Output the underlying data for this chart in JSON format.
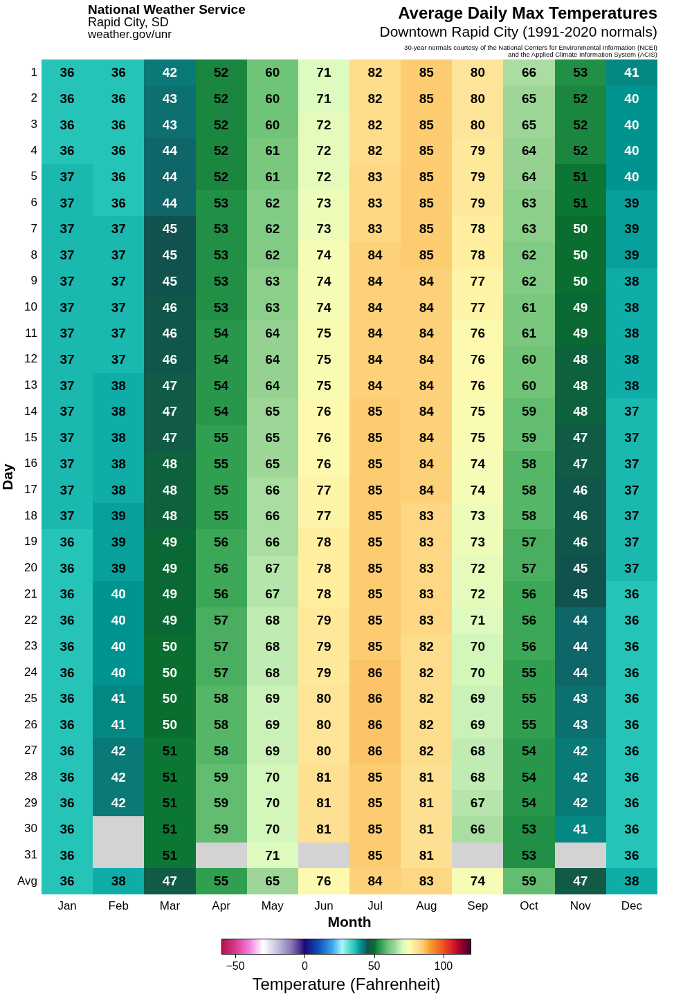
{
  "chart_data": {
    "type": "heatmap",
    "title": "Average Daily Max Temperatures",
    "subtitle": "Downtown Rapid City (1991-2020 normals)",
    "annotations": [
      "National Weather Service",
      "Rapid City, SD",
      "weather.gov/unr",
      "30-year normals courtesy of the National Centers for Environmental Information (NCEI) and the Applied Climate Information System (ACIS)"
    ],
    "xlabel": "Month",
    "ylabel": "Day",
    "clabel": "Temperature (Fahrenheit)",
    "categories": [
      "Jan",
      "Feb",
      "Mar",
      "Apr",
      "May",
      "Jun",
      "Jul",
      "Aug",
      "Sep",
      "Oct",
      "Nov",
      "Dec"
    ],
    "y_categories": [
      "1",
      "2",
      "3",
      "4",
      "5",
      "6",
      "7",
      "8",
      "9",
      "10",
      "11",
      "12",
      "13",
      "14",
      "15",
      "16",
      "17",
      "18",
      "19",
      "20",
      "21",
      "22",
      "23",
      "24",
      "25",
      "26",
      "27",
      "28",
      "29",
      "30",
      "31",
      "Avg"
    ],
    "cells": [
      [
        36,
        36,
        42,
        52,
        60,
        71,
        82,
        85,
        80,
        66,
        53,
        41
      ],
      [
        36,
        36,
        43,
        52,
        60,
        71,
        82,
        85,
        80,
        65,
        52,
        40
      ],
      [
        36,
        36,
        43,
        52,
        60,
        72,
        82,
        85,
        80,
        65,
        52,
        40
      ],
      [
        36,
        36,
        44,
        52,
        61,
        72,
        82,
        85,
        79,
        64,
        52,
        40
      ],
      [
        37,
        36,
        44,
        52,
        61,
        72,
        83,
        85,
        79,
        64,
        51,
        40
      ],
      [
        37,
        36,
        44,
        53,
        62,
        73,
        83,
        85,
        79,
        63,
        51,
        39
      ],
      [
        37,
        37,
        45,
        53,
        62,
        73,
        83,
        85,
        78,
        63,
        50,
        39
      ],
      [
        37,
        37,
        45,
        53,
        62,
        74,
        84,
        85,
        78,
        62,
        50,
        39
      ],
      [
        37,
        37,
        45,
        53,
        63,
        74,
        84,
        84,
        77,
        62,
        50,
        38
      ],
      [
        37,
        37,
        46,
        53,
        63,
        74,
        84,
        84,
        77,
        61,
        49,
        38
      ],
      [
        37,
        37,
        46,
        54,
        64,
        75,
        84,
        84,
        76,
        61,
        49,
        38
      ],
      [
        37,
        37,
        46,
        54,
        64,
        75,
        84,
        84,
        76,
        60,
        48,
        38
      ],
      [
        37,
        38,
        47,
        54,
        64,
        75,
        84,
        84,
        76,
        60,
        48,
        38
      ],
      [
        37,
        38,
        47,
        54,
        65,
        76,
        85,
        84,
        75,
        59,
        48,
        37
      ],
      [
        37,
        38,
        47,
        55,
        65,
        76,
        85,
        84,
        75,
        59,
        47,
        37
      ],
      [
        37,
        38,
        48,
        55,
        65,
        76,
        85,
        84,
        74,
        58,
        47,
        37
      ],
      [
        37,
        38,
        48,
        55,
        66,
        77,
        85,
        84,
        74,
        58,
        46,
        37
      ],
      [
        37,
        39,
        48,
        55,
        66,
        77,
        85,
        83,
        73,
        58,
        46,
        37
      ],
      [
        36,
        39,
        49,
        56,
        66,
        78,
        85,
        83,
        73,
        57,
        46,
        37
      ],
      [
        36,
        39,
        49,
        56,
        67,
        78,
        85,
        83,
        72,
        57,
        45,
        37
      ],
      [
        36,
        40,
        49,
        56,
        67,
        78,
        85,
        83,
        72,
        56,
        45,
        36
      ],
      [
        36,
        40,
        49,
        57,
        68,
        79,
        85,
        83,
        71,
        56,
        44,
        36
      ],
      [
        36,
        40,
        50,
        57,
        68,
        79,
        85,
        82,
        70,
        56,
        44,
        36
      ],
      [
        36,
        40,
        50,
        57,
        68,
        79,
        86,
        82,
        70,
        55,
        44,
        36
      ],
      [
        36,
        41,
        50,
        58,
        69,
        80,
        86,
        82,
        69,
        55,
        43,
        36
      ],
      [
        36,
        41,
        50,
        58,
        69,
        80,
        86,
        82,
        69,
        55,
        43,
        36
      ],
      [
        36,
        42,
        51,
        58,
        69,
        80,
        86,
        82,
        68,
        54,
        42,
        36
      ],
      [
        36,
        42,
        51,
        59,
        70,
        81,
        85,
        81,
        68,
        54,
        42,
        36
      ],
      [
        36,
        42,
        51,
        59,
        70,
        81,
        85,
        81,
        67,
        54,
        42,
        36
      ],
      [
        36,
        null,
        51,
        59,
        70,
        81,
        85,
        81,
        66,
        53,
        41,
        36
      ],
      [
        36,
        null,
        51,
        null,
        71,
        null,
        85,
        81,
        null,
        53,
        null,
        36
      ],
      [
        36,
        38,
        47,
        55,
        65,
        76,
        84,
        83,
        74,
        59,
        47,
        38
      ]
    ],
    "clim": [
      -60,
      120
    ],
    "cticks": [
      {
        "value": -50,
        "label": "−50"
      },
      0,
      50,
      100
    ],
    "data_labels": true
  }
}
